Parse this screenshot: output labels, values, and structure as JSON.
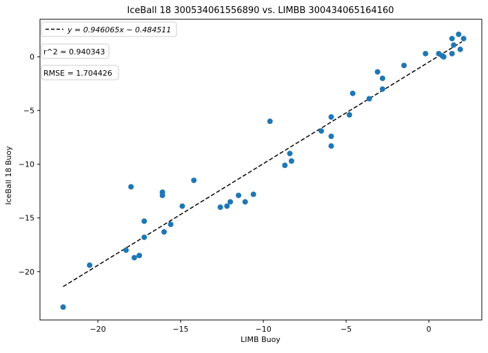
{
  "chart_data": {
    "type": "scatter",
    "title": "IceBall 18 300534061556890 vs. LIMBB 300434065164160",
    "xlabel": "LIMB Buoy",
    "ylabel": "IceBall 18 Buoy",
    "xlim": [
      -23.5,
      3.2
    ],
    "ylim": [
      -24.5,
      3.5
    ],
    "xticks": [
      -20,
      -15,
      -10,
      -5,
      0
    ],
    "yticks": [
      -20,
      -15,
      -10,
      -5,
      0
    ],
    "x_tick_labels": [
      "−20",
      "−15",
      "−10",
      "−5",
      "0"
    ],
    "y_tick_labels": [
      "−20",
      "−15",
      "−10",
      "−5",
      "0"
    ],
    "grid": false,
    "legend_position": "top-left",
    "point_color": "#1f77b4",
    "fit": {
      "legend_label": "y = 0.946065x − 0.484511",
      "slope": 0.946065,
      "intercept": -0.484511,
      "x_range": [
        -22.1,
        2.0
      ],
      "style": "dashed",
      "color": "#000000"
    },
    "annotations": [
      "r^2 = 0.940343",
      "RMSE = 1.704426"
    ],
    "points": [
      {
        "x": -22.1,
        "y": -23.3
      },
      {
        "x": -20.5,
        "y": -19.4
      },
      {
        "x": -18.3,
        "y": -18.0
      },
      {
        "x": -18.0,
        "y": -12.1
      },
      {
        "x": -17.8,
        "y": -18.7
      },
      {
        "x": -17.5,
        "y": -18.5
      },
      {
        "x": -17.2,
        "y": -16.8
      },
      {
        "x": -17.2,
        "y": -15.3
      },
      {
        "x": -16.1,
        "y": -12.9
      },
      {
        "x": -16.1,
        "y": -12.6
      },
      {
        "x": -16.0,
        "y": -16.3
      },
      {
        "x": -15.6,
        "y": -15.6
      },
      {
        "x": -14.9,
        "y": -13.9
      },
      {
        "x": -14.2,
        "y": -11.5
      },
      {
        "x": -12.6,
        "y": -14.0
      },
      {
        "x": -12.2,
        "y": -13.9
      },
      {
        "x": -12.0,
        "y": -13.5
      },
      {
        "x": -11.5,
        "y": -12.9
      },
      {
        "x": -11.1,
        "y": -13.5
      },
      {
        "x": -10.6,
        "y": -12.8
      },
      {
        "x": -9.6,
        "y": -6.0
      },
      {
        "x": -8.7,
        "y": -10.1
      },
      {
        "x": -8.4,
        "y": -9.0
      },
      {
        "x": -8.3,
        "y": -9.7
      },
      {
        "x": -6.5,
        "y": -6.9
      },
      {
        "x": -5.9,
        "y": -5.6
      },
      {
        "x": -5.9,
        "y": -7.4
      },
      {
        "x": -5.9,
        "y": -8.3
      },
      {
        "x": -4.8,
        "y": -5.4
      },
      {
        "x": -4.6,
        "y": -3.4
      },
      {
        "x": -3.6,
        "y": -3.9
      },
      {
        "x": -3.1,
        "y": -1.4
      },
      {
        "x": -2.8,
        "y": -2.0
      },
      {
        "x": -2.8,
        "y": -3.0
      },
      {
        "x": -1.5,
        "y": -0.8
      },
      {
        "x": -0.2,
        "y": 0.3
      },
      {
        "x": 0.6,
        "y": 0.3
      },
      {
        "x": 0.8,
        "y": 0.1
      },
      {
        "x": 0.9,
        "y": 0.0
      },
      {
        "x": 1.4,
        "y": 1.7
      },
      {
        "x": 1.4,
        "y": 0.3
      },
      {
        "x": 1.5,
        "y": 1.1
      },
      {
        "x": 1.8,
        "y": 2.1
      },
      {
        "x": 1.9,
        "y": 0.7
      },
      {
        "x": 2.1,
        "y": 1.7
      }
    ]
  }
}
